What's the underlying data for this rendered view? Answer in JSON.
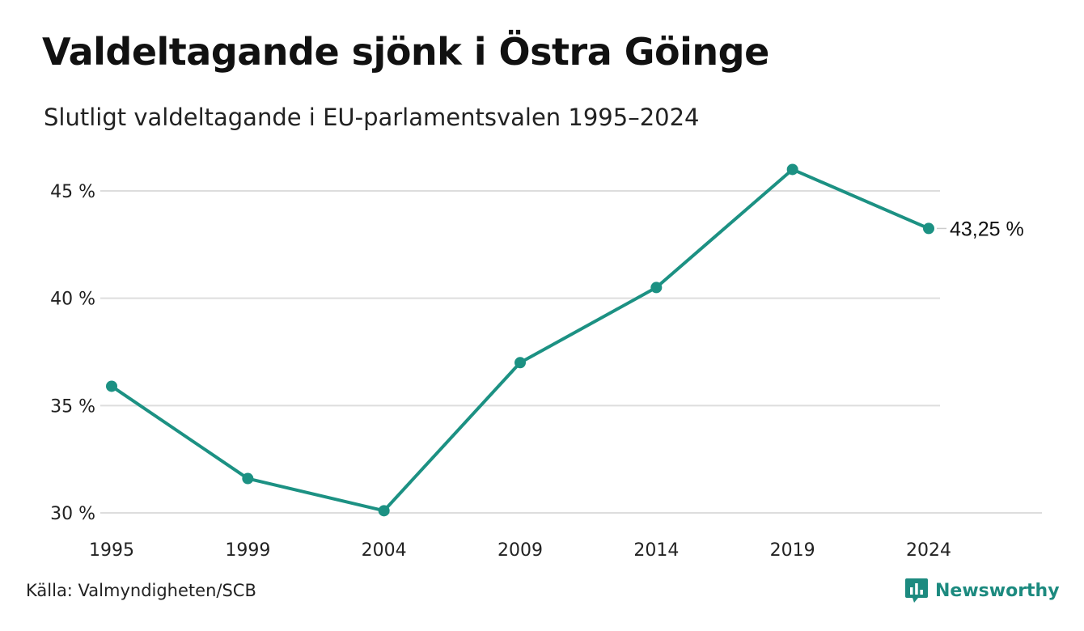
{
  "title": "Valdeltagande sjönk i Östra Göinge",
  "subtitle": "Slutligt valdeltagande i EU-parlamentsvalen 1995–2024",
  "source": "Källa: Valmyndigheten/SCB",
  "brand": {
    "name": "Newsworthy",
    "icon": "newsworthy-logo-icon"
  },
  "colors": {
    "line": "#1c9183",
    "grid": "#dddddd",
    "brand": "#1c8a7f"
  },
  "chart_data": {
    "type": "line",
    "title": "Valdeltagande sjönk i Östra Göinge",
    "subtitle": "Slutligt valdeltagande i EU-parlamentsvalen 1995–2024",
    "x": [
      "1995",
      "1999",
      "2004",
      "2009",
      "2014",
      "2019",
      "2024"
    ],
    "series": [
      {
        "values": [
          35.9,
          31.6,
          30.1,
          37.0,
          40.5,
          46.0,
          43.25
        ]
      }
    ],
    "ylim": [
      30,
      45
    ],
    "yticks": [
      30,
      35,
      40,
      45
    ],
    "ytick_labels": [
      "30 %",
      "35 %",
      "40 %",
      "45 %"
    ],
    "grid": true,
    "end_label": "43,25 %"
  }
}
